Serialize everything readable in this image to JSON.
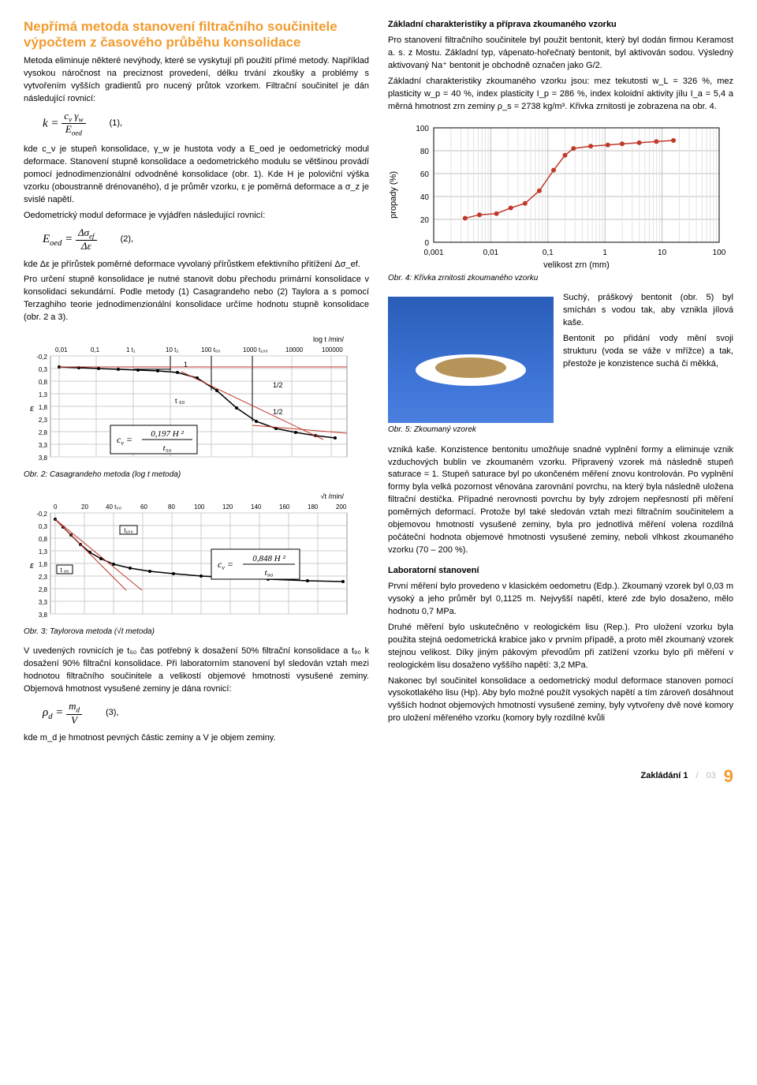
{
  "colors": {
    "accent": "#f29b2e",
    "text": "#000000",
    "chart_grid": "#cccccc",
    "chart_axis": "#000000",
    "chart_line_red": "#c0392b",
    "chart_line_black": "#000000",
    "photo_bg_top": "#2a5db8",
    "photo_bg_bottom": "#4a7fdf",
    "photo_plate": "#ffffff",
    "photo_powder": "#b79459"
  },
  "left": {
    "title": "Nepřímá metoda stanovení filtračního součinitele výpočtem z časového průběhu konsolidace",
    "p1": "Metoda eliminuje některé nevýhody, které se vyskytují při použití přímé metody. Například vysokou náročnost na preciznost provedení, délku trvání zkoušky a problémy s vytvořením vyšších gradientů pro nucený průtok vzorkem. Filtrační součinitel je dán následující rovnicí:",
    "eq1_lhs": "k =",
    "eq1_top": "cᵥ γᵥᵥ",
    "eq1_top_tex": "c_v γ_w",
    "eq1_bot": "E_oed",
    "eq1_num": "(1),",
    "p2": "kde c_v je stupeň konsolidace, γ_w je hustota vody a E_oed je oedometrický modul deformace. Stanovení stupně konsolidace a oedometrického modulu se většinou provádí pomocí jednodimenzionální odvodněné konsolidace (obr. 1). Kde H je poloviční výška vzorku (oboustranně drénovaného), d je průměr vzorku, ε je poměrná deformace a σ_z je svislé napětí.",
    "p3_lead": "Oedometrický modul deformace je vyjádřen následující rovnicí:",
    "eq2_lhs": "E_oed =",
    "eq2_top": "Δσ_ef",
    "eq2_bot": "Δε",
    "eq2_num": "(2),",
    "p4": "kde Δε je přírůstek poměrné deformace vyvolaný přírůstkem efektivního přitížení Δσ_ef.",
    "p5": "Pro určení stupně konsolidace je nutné stanovit dobu přechodu primární konsolidace v konsolidaci sekundární. Podle metody (1) Casagrandeho nebo (2) Taylora a s pomocí Terzaghiho teorie jednodimenzionální konsolidace určíme hodnotu stupně konsolidace (obr. 2 a 3).",
    "chart2": {
      "type": "line-log",
      "x_label_suffix": "log t /min/",
      "x_ticks_labels": [
        "0,01",
        "0,1",
        "1 t₁",
        "10  t₂",
        "100  t₅₀",
        "1000  t₁₀₀",
        "10000",
        "100000"
      ],
      "y_ticks": [
        "-0,2",
        "0,3",
        "0,8",
        "1,3",
        "1,8",
        "2,3",
        "2,8",
        "3,3",
        "3,8"
      ],
      "y_symbol": "ε",
      "annot_1": "1",
      "annot_half_a": "1/2",
      "annot_half_b": "1/2",
      "annot_t50": "t ₅₀",
      "inset_formula_top": "0,197 H ²",
      "inset_formula_bot": "t₅₀",
      "inset_lhs": "c_v ="
    },
    "caption2": "Obr. 2: Casagrandeho metoda (log t metoda)",
    "chart3": {
      "type": "line-linear",
      "x_label_suffix": "√t /min/",
      "x_ticks_labels": [
        "0",
        "20",
        "40 t₅₀",
        "60",
        "80",
        "100",
        "120",
        "140",
        "160",
        "180",
        "200"
      ],
      "y_ticks": [
        "-0,2",
        "0,3",
        "0,8",
        "1,3",
        "1,8",
        "2,3",
        "2,8",
        "3,3",
        "3,8"
      ],
      "y_symbol": "ε",
      "annot_t90": "t ₉₀",
      "annot_t100": "t₁₀₀",
      "inset_formula_top": "0,848  H ²",
      "inset_formula_bot": "t₉₀",
      "inset_lhs": "c_v ="
    },
    "caption3": "Obr. 3: Taylorova metoda (√t metoda)",
    "p6": "V uvedených rovnicích je t₅₀ čas potřebný k dosažení 50% filtrační konsolidace a t₉₀ k dosažení 90% filtrační konsolidace. Při laboratorním stanovení byl sledován vztah mezi hodnotou filtračního součinitele a velikostí objemové hmotnosti vysušené zeminy. Objemová hmotnost vysušené zeminy je dána rovnicí:",
    "eq3_lhs": "ρ_d =",
    "eq3_top": "m_d",
    "eq3_bot": "V",
    "eq3_num": "(3),",
    "p7": "kde m_d je hmotnost pevných částic zeminy a V je objem zeminy."
  },
  "right": {
    "h1": "Základní charakteristiky a příprava zkoumaného vzorku",
    "p1": "Pro stanovení filtračního součinitele byl použit bentonit, který byl dodán firmou Keramost a. s. z Mostu. Základní typ, vápenato-hořečnatý bentonit, byl aktivován sodou. Výsledný aktivovaný Na⁺ bentonit je obchodně označen jako G/2.",
    "p2": "Základní charakteristiky zkoumaného vzorku jsou: mez tekutosti w_L = 326 %, mez plasticity w_p = 40 %, index plasticity I_p = 286 %, index koloidní aktivity jílu I_a = 5,4 a měrná hmotnost zrn zeminy ρ_s = 2738 kg/m³. Křivka zrnitosti je zobrazena na obr. 4.",
    "chart1": {
      "type": "line-log",
      "y_label": "propady (%)",
      "x_label": "velikost zrn  (mm)",
      "y_ticks": [
        0,
        20,
        40,
        60,
        80,
        100
      ],
      "x_ticks_labels": [
        "0,001",
        "0,01",
        "0,1",
        "1",
        "10",
        "100"
      ],
      "series_points_pct": [
        [
          0.11,
          21
        ],
        [
          0.16,
          24
        ],
        [
          0.22,
          25
        ],
        [
          0.27,
          30
        ],
        [
          0.32,
          34
        ],
        [
          0.37,
          45
        ],
        [
          0.42,
          63
        ],
        [
          0.46,
          76
        ],
        [
          0.49,
          82
        ],
        [
          0.55,
          84
        ],
        [
          0.61,
          85
        ],
        [
          0.66,
          86
        ],
        [
          0.72,
          87
        ],
        [
          0.78,
          88
        ],
        [
          0.84,
          89
        ]
      ],
      "series_color": "#c0392b",
      "marker": "circle",
      "marker_size": 3,
      "line_width": 1.5,
      "grid_color": "#bfbfbf",
      "background": "#ffffff",
      "ylim": [
        0,
        100
      ],
      "xlim_log": [
        0.001,
        100
      ]
    },
    "caption1": "Obr. 4: Křivka zrnitosti zkoumaného vzorku",
    "photo_caption": "Obr. 5: Zkoumaný vzorek",
    "p3a": "Suchý, práškový bentonit (obr. 5) byl smíchán s vodou tak, aby vznikla jílová kaše.",
    "p3b": "Bentonit po přidání vody mění svoji strukturu (voda se váže v mřížce) a tak, přestože je konzistence suchá či měkká,",
    "p4": "vzniká kaše. Konzistence bentonitu umožňuje snadné vyplnění formy a eliminuje vznik vzduchových bublin ve zkoumaném vzorku. Připravený vzorek má následně stupeň saturace = 1. Stupeň saturace byl po ukončeném měření znovu kontrolován. Po vyplnění formy byla velká pozornost věnována zarovnání povrchu, na který byla následně uložena filtrační destička. Případné nerovnosti povrchu by byly zdrojem nepřesností při měření poměrných deformací. Protože byl také sledován vztah mezi filtračním součinitelem a objemovou hmotností vysušené zeminy, byla pro jednotlivá měření volena rozdílná počáteční hodnota objemové hmotnosti vysušené zeminy, neboli vlhkost zkoumaného vzorku (70 – 200 %).",
    "h2": "Laboratorní stanovení",
    "p5": "První měření bylo provedeno v klasickém oedometru (Edp.). Zkoumaný vzorek byl 0,03 m vysoký a jeho průměr byl 0,1125 m. Nejvyšší napětí, které zde bylo dosaženo, mělo hodnotu 0,7 MPa.",
    "p6": "Druhé měření bylo uskutečněno v reologickém lisu (Rep.). Pro uložení vzorku byla použita stejná oedometrická krabice jako v prvním případě, a proto měl zkoumaný vzorek stejnou velikost. Díky jiným pákovým převodům při zatížení vzorku bylo při měření v reologickém lisu dosaženo vyššího napětí: 3,2 MPa.",
    "p7": "Nakonec byl součinitel konsolidace a oedometrický modul deformace stanoven pomocí vysokotlakého lisu (Hp). Aby bylo možné použít vysokých napětí a tím zároveň dosáhnout vyšších hodnot objemových hmotností vysušené zeminy, byly vytvořeny dvě nové komory pro uložení měřeného vzorku (komory byly rozdílné kvůli"
  },
  "footer": {
    "mag": "Zakládání 1",
    "year": "03",
    "page": "9"
  }
}
